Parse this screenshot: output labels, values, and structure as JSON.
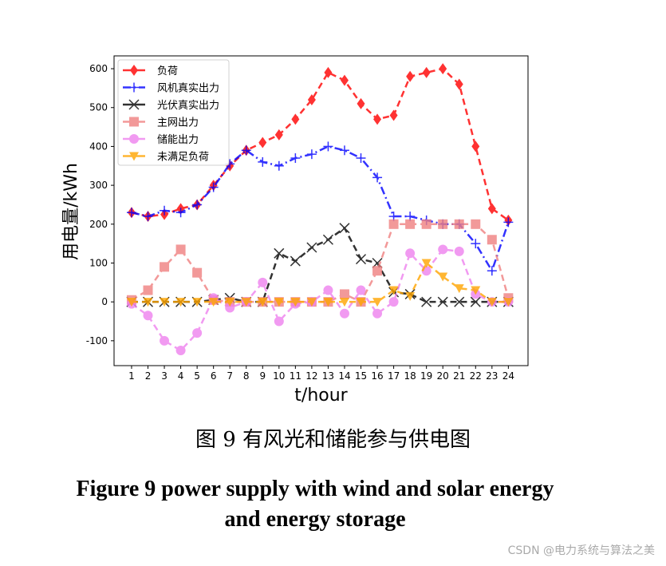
{
  "chart_data": {
    "type": "line",
    "xlabel": "t/hour",
    "ylabel": "用电量/kWh",
    "xlim": [
      -0.07,
      25.2
    ],
    "ylim": [
      -164,
      633
    ],
    "x": [
      1,
      2,
      3,
      4,
      5,
      6,
      7,
      8,
      9,
      10,
      11,
      12,
      13,
      14,
      15,
      16,
      17,
      18,
      19,
      20,
      21,
      22,
      23,
      24
    ],
    "xticks": [
      "1",
      "2",
      "3",
      "4",
      "5",
      "6",
      "7",
      "8",
      "9",
      "10",
      "11",
      "12",
      "13",
      "14",
      "15",
      "16",
      "17",
      "18",
      "19",
      "20",
      "21",
      "22",
      "23",
      "24"
    ],
    "yticks": [
      "-100",
      "0",
      "100",
      "200",
      "300",
      "400",
      "500",
      "600"
    ],
    "ytick_values": [
      -100,
      0,
      100,
      200,
      300,
      400,
      500,
      600
    ],
    "legend_position": "top-left",
    "series": [
      {
        "name": "负荷",
        "color": "#ff0000",
        "marker": "diamond",
        "dash": "8,5",
        "values": [
          230,
          220,
          225,
          240,
          250,
          300,
          350,
          390,
          410,
          430,
          470,
          520,
          590,
          570,
          510,
          470,
          480,
          580,
          590,
          600,
          560,
          400,
          240,
          210
        ]
      },
      {
        "name": "风机真实出力",
        "color": "#0000ff",
        "marker": "plus",
        "dash": "10,4,2,4",
        "values": [
          230,
          220,
          235,
          230,
          250,
          295,
          355,
          390,
          360,
          350,
          370,
          380,
          400,
          390,
          370,
          320,
          220,
          220,
          210,
          200,
          200,
          150,
          80,
          205
        ]
      },
      {
        "name": "光伏真实出力",
        "color": "#000000",
        "marker": "x",
        "dash": "8,5",
        "values": [
          0,
          0,
          0,
          0,
          0,
          5,
          10,
          0,
          0,
          125,
          105,
          140,
          160,
          190,
          110,
          100,
          25,
          20,
          0,
          0,
          0,
          0,
          0,
          0
        ]
      },
      {
        "name": "主网出力",
        "color": "#f08080",
        "marker": "square",
        "dash": "8,5",
        "values": [
          5,
          30,
          90,
          135,
          75,
          5,
          0,
          0,
          0,
          0,
          0,
          0,
          0,
          20,
          0,
          80,
          200,
          200,
          200,
          200,
          200,
          200,
          160,
          10
        ]
      },
      {
        "name": "储能出力",
        "color": "#ee82ee",
        "marker": "circle",
        "dash": "8,5",
        "values": [
          -5,
          -35,
          -100,
          -125,
          -80,
          10,
          -15,
          0,
          50,
          -50,
          -5,
          0,
          30,
          -30,
          30,
          -30,
          0,
          125,
          80,
          135,
          130,
          20,
          0,
          0
        ]
      },
      {
        "name": "未满足负荷",
        "color": "#ffa500",
        "marker": "triangle",
        "dash": "8,5",
        "values": [
          0,
          0,
          0,
          0,
          0,
          0,
          0,
          0,
          0,
          0,
          0,
          0,
          0,
          0,
          0,
          0,
          30,
          15,
          100,
          65,
          35,
          30,
          0,
          0
        ]
      }
    ]
  },
  "caption_cn": "图 9  有风光和储能参与供电图",
  "caption_en_line1": "Figure 9 power supply with wind and solar energy",
  "caption_en_line2": "and energy storage",
  "watermark": "CSDN @电力系统与算法之美"
}
